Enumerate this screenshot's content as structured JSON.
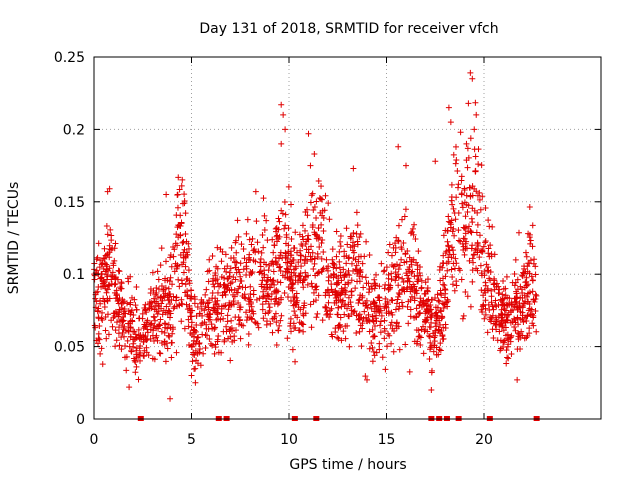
{
  "chart_data": {
    "type": "scatter",
    "title": "Day 131 of 2018, SRMTID for receiver vfch",
    "xlabel": "GPS time / hours",
    "ylabel": "SRMTID / TECUs",
    "xlim": [
      0,
      26
    ],
    "ylim": [
      0,
      0.25
    ],
    "x_ticks": [
      "0",
      "5",
      "10",
      "15",
      "20"
    ],
    "x_tick_values": [
      0,
      5,
      10,
      15,
      20
    ],
    "y_ticks": [
      "0",
      "0.05",
      "0.1",
      "0.15",
      "0.2",
      "0.25"
    ],
    "y_tick_values": [
      0,
      0.05,
      0.1,
      0.15,
      0.2,
      0.25
    ],
    "grid": true,
    "marker": "+",
    "color": "#e00000",
    "trend": [
      [
        0.0,
        0.085
      ],
      [
        0.5,
        0.09
      ],
      [
        0.8,
        0.11
      ],
      [
        1.2,
        0.08
      ],
      [
        1.8,
        0.065
      ],
      [
        2.3,
        0.055
      ],
      [
        3.0,
        0.07
      ],
      [
        3.5,
        0.075
      ],
      [
        4.0,
        0.08
      ],
      [
        4.3,
        0.115
      ],
      [
        4.6,
        0.12
      ],
      [
        5.0,
        0.06
      ],
      [
        5.5,
        0.065
      ],
      [
        6.0,
        0.075
      ],
      [
        6.5,
        0.08
      ],
      [
        7.0,
        0.085
      ],
      [
        7.5,
        0.09
      ],
      [
        8.0,
        0.09
      ],
      [
        8.5,
        0.1
      ],
      [
        9.0,
        0.09
      ],
      [
        9.5,
        0.1
      ],
      [
        9.8,
        0.12
      ],
      [
        10.3,
        0.085
      ],
      [
        11.0,
        0.11
      ],
      [
        11.5,
        0.12
      ],
      [
        12.0,
        0.095
      ],
      [
        12.5,
        0.085
      ],
      [
        13.0,
        0.09
      ],
      [
        13.5,
        0.1
      ],
      [
        14.0,
        0.08
      ],
      [
        14.5,
        0.07
      ],
      [
        15.0,
        0.085
      ],
      [
        15.5,
        0.095
      ],
      [
        16.0,
        0.1
      ],
      [
        16.5,
        0.09
      ],
      [
        17.0,
        0.075
      ],
      [
        17.5,
        0.06
      ],
      [
        18.0,
        0.1
      ],
      [
        18.4,
        0.13
      ],
      [
        19.0,
        0.13
      ],
      [
        19.5,
        0.14
      ],
      [
        19.8,
        0.13
      ],
      [
        20.3,
        0.09
      ],
      [
        20.8,
        0.075
      ],
      [
        21.3,
        0.065
      ],
      [
        21.8,
        0.08
      ],
      [
        22.3,
        0.095
      ],
      [
        22.7,
        0.085
      ]
    ],
    "spikes": [
      {
        "x": 9.6,
        "y": 0.217
      },
      {
        "x": 9.7,
        "y": 0.21
      },
      {
        "x": 9.8,
        "y": 0.2
      },
      {
        "x": 9.6,
        "y": 0.19
      },
      {
        "x": 11.0,
        "y": 0.197
      },
      {
        "x": 11.3,
        "y": 0.183
      },
      {
        "x": 11.1,
        "y": 0.175
      },
      {
        "x": 13.3,
        "y": 0.173
      },
      {
        "x": 15.6,
        "y": 0.188
      },
      {
        "x": 16.0,
        "y": 0.175
      },
      {
        "x": 17.5,
        "y": 0.178
      },
      {
        "x": 18.2,
        "y": 0.215
      },
      {
        "x": 18.3,
        "y": 0.205
      },
      {
        "x": 18.8,
        "y": 0.198
      },
      {
        "x": 19.3,
        "y": 0.239
      },
      {
        "x": 19.4,
        "y": 0.235
      },
      {
        "x": 19.2,
        "y": 0.218
      },
      {
        "x": 19.5,
        "y": 0.2
      },
      {
        "x": 19.1,
        "y": 0.19
      },
      {
        "x": 19.7,
        "y": 0.176
      },
      {
        "x": 0.8,
        "y": 0.159
      },
      {
        "x": 0.7,
        "y": 0.157
      },
      {
        "x": 4.5,
        "y": 0.161
      },
      {
        "x": 4.3,
        "y": 0.155
      },
      {
        "x": 3.7,
        "y": 0.155
      },
      {
        "x": 8.3,
        "y": 0.157
      },
      {
        "x": 3.9,
        "y": 0.014
      },
      {
        "x": 1.8,
        "y": 0.022
      },
      {
        "x": 5.2,
        "y": 0.025
      },
      {
        "x": 14.0,
        "y": 0.027
      },
      {
        "x": 17.3,
        "y": 0.02
      },
      {
        "x": 21.7,
        "y": 0.027
      },
      {
        "x": 5.0,
        "y": 0.03
      }
    ],
    "bad_markers_x": [
      2.4,
      6.4,
      6.8,
      10.3,
      11.4,
      17.3,
      17.7,
      18.1,
      18.7,
      20.3,
      22.7
    ],
    "n_points": 2200
  }
}
